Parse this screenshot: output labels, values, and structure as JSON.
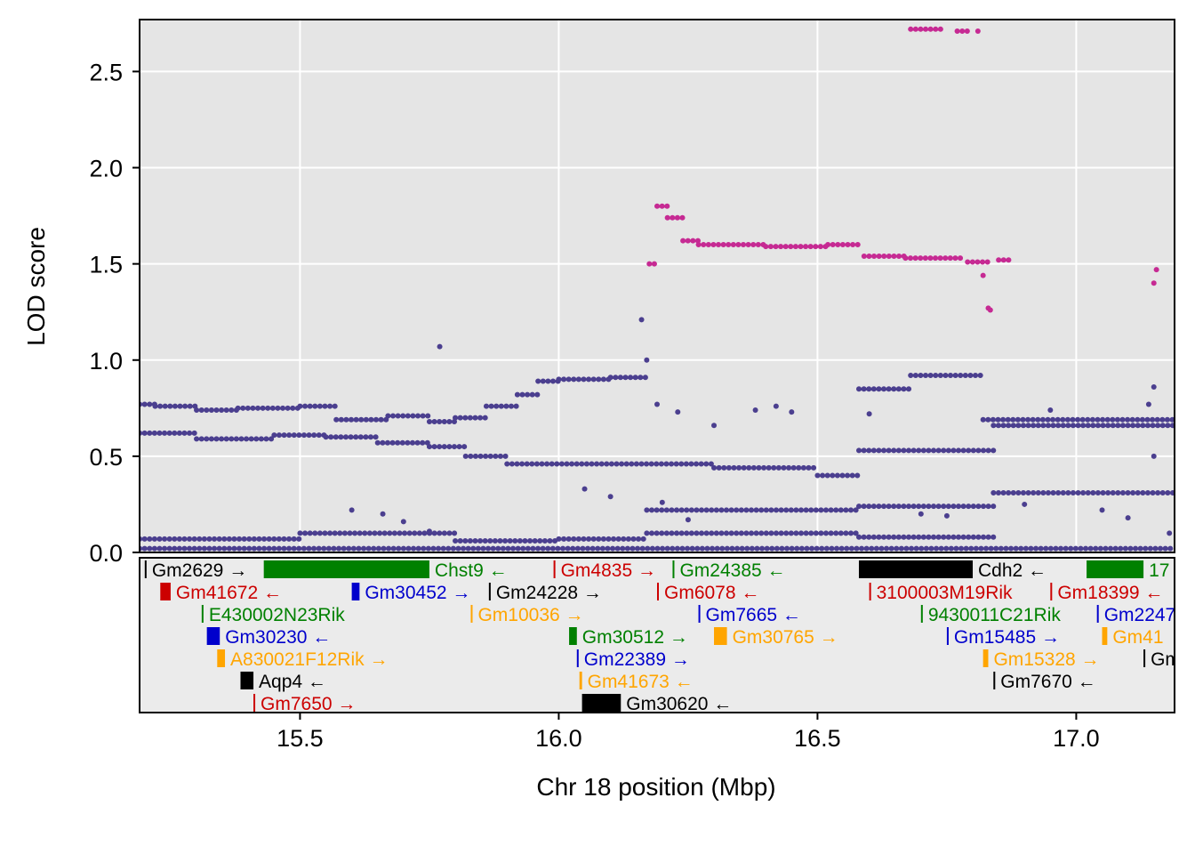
{
  "chart_data": [
    {
      "type": "scatter",
      "xlabel": "",
      "ylabel": "LOD score",
      "xlim": [
        15.19,
        17.19
      ],
      "ylim": [
        0,
        2.77
      ],
      "y_ticks": [
        "0.0",
        "0.5",
        "1.0",
        "1.5",
        "2.0",
        "2.5"
      ],
      "y_tick_values": [
        0,
        0.5,
        1.0,
        1.5,
        2.0,
        2.5
      ],
      "x_gridlines": [
        15.5,
        16.0,
        16.5,
        17.0
      ],
      "grid": true,
      "colors": {
        "background": "#e5e5e5",
        "grid": "#ffffff",
        "highlight": "#c62a93",
        "base": "#4b3f8f"
      },
      "series": [
        {
          "color": "#c62a93",
          "segments": [
            {
              "x0": 16.175,
              "x1": 16.19,
              "y": 1.5
            },
            {
              "x0": 16.19,
              "x1": 16.21,
              "y": 1.8
            },
            {
              "x0": 16.21,
              "x1": 16.24,
              "y": 1.74
            },
            {
              "x0": 16.24,
              "x1": 16.27,
              "y": 1.62
            },
            {
              "x0": 16.27,
              "x1": 16.4,
              "y": 1.6
            },
            {
              "x0": 16.4,
              "x1": 16.52,
              "y": 1.59
            },
            {
              "x0": 16.52,
              "x1": 16.58,
              "y": 1.6
            },
            {
              "x0": 16.59,
              "x1": 16.67,
              "y": 1.54
            },
            {
              "x0": 16.67,
              "x1": 16.78,
              "y": 1.53
            },
            {
              "x0": 16.79,
              "x1": 16.83,
              "y": 1.51
            },
            {
              "x0": 16.85,
              "x1": 16.87,
              "y": 1.52
            },
            {
              "x0": 16.68,
              "x1": 16.74,
              "y": 2.72
            },
            {
              "x0": 16.77,
              "x1": 16.79,
              "y": 2.71
            }
          ],
          "points": [
            [
              16.82,
              1.44
            ],
            [
              16.83,
              1.27
            ],
            [
              16.834,
              1.26
            ],
            [
              17.15,
              1.4
            ],
            [
              17.155,
              1.47
            ],
            [
              16.81,
              2.71
            ]
          ]
        },
        {
          "color": "#4b3f8f",
          "segments": [
            {
              "x0": 15.19,
              "x1": 15.22,
              "y": 0.77
            },
            {
              "x0": 15.22,
              "x1": 15.3,
              "y": 0.76
            },
            {
              "x0": 15.3,
              "x1": 15.38,
              "y": 0.74
            },
            {
              "x0": 15.38,
              "x1": 15.5,
              "y": 0.75
            },
            {
              "x0": 15.5,
              "x1": 15.57,
              "y": 0.76
            },
            {
              "x0": 15.57,
              "x1": 15.67,
              "y": 0.69
            },
            {
              "x0": 15.67,
              "x1": 15.75,
              "y": 0.71
            },
            {
              "x0": 15.75,
              "x1": 15.8,
              "y": 0.68
            },
            {
              "x0": 15.8,
              "x1": 15.86,
              "y": 0.7
            },
            {
              "x0": 15.86,
              "x1": 15.92,
              "y": 0.76
            },
            {
              "x0": 15.92,
              "x1": 15.96,
              "y": 0.82
            },
            {
              "x0": 15.96,
              "x1": 16.0,
              "y": 0.89
            },
            {
              "x0": 16.0,
              "x1": 16.1,
              "y": 0.9
            },
            {
              "x0": 16.1,
              "x1": 16.17,
              "y": 0.91
            },
            {
              "x0": 15.19,
              "x1": 15.3,
              "y": 0.62
            },
            {
              "x0": 15.3,
              "x1": 15.45,
              "y": 0.59
            },
            {
              "x0": 15.45,
              "x1": 15.55,
              "y": 0.61
            },
            {
              "x0": 15.55,
              "x1": 15.65,
              "y": 0.6
            },
            {
              "x0": 15.65,
              "x1": 15.75,
              "y": 0.57
            },
            {
              "x0": 15.75,
              "x1": 15.82,
              "y": 0.55
            },
            {
              "x0": 15.82,
              "x1": 15.9,
              "y": 0.5
            },
            {
              "x0": 15.9,
              "x1": 16.3,
              "y": 0.46
            },
            {
              "x0": 16.3,
              "x1": 16.5,
              "y": 0.44
            },
            {
              "x0": 16.5,
              "x1": 16.58,
              "y": 0.4
            },
            {
              "x0": 16.58,
              "x1": 16.84,
              "y": 0.53
            },
            {
              "x0": 16.58,
              "x1": 16.68,
              "y": 0.85
            },
            {
              "x0": 16.68,
              "x1": 16.82,
              "y": 0.92
            },
            {
              "x0": 16.82,
              "x1": 17.19,
              "y": 0.69
            },
            {
              "x0": 16.84,
              "x1": 17.19,
              "y": 0.66
            },
            {
              "x0": 16.84,
              "x1": 17.19,
              "y": 0.31
            },
            {
              "x0": 15.19,
              "x1": 15.5,
              "y": 0.07
            },
            {
              "x0": 15.5,
              "x1": 15.8,
              "y": 0.1
            },
            {
              "x0": 15.8,
              "x1": 16.0,
              "y": 0.06
            },
            {
              "x0": 16.0,
              "x1": 16.17,
              "y": 0.07
            },
            {
              "x0": 16.17,
              "x1": 16.58,
              "y": 0.22
            },
            {
              "x0": 16.58,
              "x1": 16.84,
              "y": 0.24
            },
            {
              "x0": 16.17,
              "x1": 16.58,
              "y": 0.1
            },
            {
              "x0": 16.58,
              "x1": 16.84,
              "y": 0.08
            },
            {
              "x0": 15.19,
              "x1": 17.19,
              "y": 0.02
            }
          ],
          "points": [
            [
              15.77,
              1.07
            ],
            [
              16.17,
              1.0
            ],
            [
              16.16,
              1.21
            ],
            [
              16.19,
              0.77
            ],
            [
              16.23,
              0.73
            ],
            [
              16.3,
              0.66
            ],
            [
              16.38,
              0.74
            ],
            [
              16.42,
              0.76
            ],
            [
              16.45,
              0.73
            ],
            [
              16.6,
              0.72
            ],
            [
              16.95,
              0.74
            ],
            [
              17.15,
              0.86
            ],
            [
              17.14,
              0.77
            ],
            [
              15.6,
              0.22
            ],
            [
              15.66,
              0.2
            ],
            [
              15.7,
              0.16
            ],
            [
              15.75,
              0.11
            ],
            [
              16.05,
              0.33
            ],
            [
              16.1,
              0.29
            ],
            [
              16.2,
              0.26
            ],
            [
              16.25,
              0.17
            ],
            [
              16.7,
              0.2
            ],
            [
              16.75,
              0.19
            ],
            [
              16.9,
              0.25
            ],
            [
              17.05,
              0.22
            ],
            [
              17.1,
              0.18
            ],
            [
              17.15,
              0.5
            ],
            [
              17.18,
              0.1
            ]
          ]
        }
      ]
    }
  ],
  "y_axis_title": "LOD score",
  "x_axis_title": "Chr 18 position (Mbp)",
  "x_ticks": [
    "15.5",
    "16.0",
    "16.5",
    "17.0"
  ],
  "genes": [
    {
      "name": "Gm2629",
      "arrow": "→",
      "row": 0,
      "start": 15.2,
      "end": 15.202,
      "color": "#000000"
    },
    {
      "name": "Chst9",
      "arrow": "←",
      "row": 0,
      "start": 15.43,
      "end": 15.75,
      "color": "#008000"
    },
    {
      "name": "Gm4835",
      "arrow": "→",
      "row": 0,
      "start": 15.99,
      "end": 15.992,
      "color": "#cc0000"
    },
    {
      "name": "Gm24385",
      "arrow": "←",
      "row": 0,
      "start": 16.22,
      "end": 16.222,
      "color": "#008000"
    },
    {
      "name": "Cdh2",
      "arrow": "←",
      "row": 0,
      "start": 16.58,
      "end": 16.8,
      "color": "#000000"
    },
    {
      "name": "17",
      "arrow": "",
      "row": 0,
      "start": 17.02,
      "end": 17.13,
      "color": "#008000"
    },
    {
      "name": "Gm41672",
      "arrow": "←",
      "row": 1,
      "start": 15.23,
      "end": 15.25,
      "color": "#cc0000"
    },
    {
      "name": "Gm30452",
      "arrow": "→",
      "row": 1,
      "start": 15.6,
      "end": 15.615,
      "color": "#0000cc"
    },
    {
      "name": "Gm24228",
      "arrow": "→",
      "row": 1,
      "start": 15.865,
      "end": 15.867,
      "color": "#000000"
    },
    {
      "name": "Gm6078",
      "arrow": "←",
      "row": 1,
      "start": 16.19,
      "end": 16.192,
      "color": "#cc0000"
    },
    {
      "name": "3100003M19Rik",
      "arrow": "",
      "row": 1,
      "start": 16.6,
      "end": 16.602,
      "color": "#cc0000"
    },
    {
      "name": "Gm18399",
      "arrow": "←",
      "row": 1,
      "start": 16.95,
      "end": 16.952,
      "color": "#cc0000"
    },
    {
      "name": "E430002N23Rik",
      "arrow": "",
      "row": 2,
      "start": 15.31,
      "end": 15.312,
      "color": "#008000"
    },
    {
      "name": "Gm10036",
      "arrow": "→",
      "row": 2,
      "start": 15.83,
      "end": 15.832,
      "color": "#ffa500"
    },
    {
      "name": "Gm7665",
      "arrow": "←",
      "row": 2,
      "start": 16.27,
      "end": 16.272,
      "color": "#0000cc"
    },
    {
      "name": "9430011C21Rik",
      "arrow": "",
      "row": 2,
      "start": 16.7,
      "end": 16.702,
      "color": "#008000"
    },
    {
      "name": "Gm2247",
      "arrow": "",
      "row": 2,
      "start": 17.04,
      "end": 17.042,
      "color": "#0000cc"
    },
    {
      "name": "Gm30230",
      "arrow": "←",
      "row": 3,
      "start": 15.32,
      "end": 15.345,
      "color": "#0000cc"
    },
    {
      "name": "Gm30512",
      "arrow": "→",
      "row": 3,
      "start": 16.02,
      "end": 16.035,
      "color": "#008000"
    },
    {
      "name": "Gm30765",
      "arrow": "→",
      "row": 3,
      "start": 16.3,
      "end": 16.325,
      "color": "#ffa500"
    },
    {
      "name": "Gm15485",
      "arrow": "→",
      "row": 3,
      "start": 16.75,
      "end": 16.752,
      "color": "#0000cc"
    },
    {
      "name": "Gm41",
      "arrow": "",
      "row": 3,
      "start": 17.05,
      "end": 17.06,
      "color": "#ffa500"
    },
    {
      "name": "A830021F12Rik",
      "arrow": "→",
      "row": 4,
      "start": 15.34,
      "end": 15.355,
      "color": "#ffa500"
    },
    {
      "name": "Gm22389",
      "arrow": "→",
      "row": 4,
      "start": 16.035,
      "end": 16.037,
      "color": "#0000cc"
    },
    {
      "name": "Gm15328",
      "arrow": "→",
      "row": 4,
      "start": 16.82,
      "end": 16.83,
      "color": "#ffa500"
    },
    {
      "name": "Gm",
      "arrow": "",
      "row": 4,
      "start": 17.13,
      "end": 17.132,
      "color": "#000000"
    },
    {
      "name": "Aqp4",
      "arrow": "←",
      "row": 5,
      "start": 15.385,
      "end": 15.41,
      "color": "#000000"
    },
    {
      "name": "Gm41673",
      "arrow": "←",
      "row": 5,
      "start": 16.04,
      "end": 16.045,
      "color": "#ffa500"
    },
    {
      "name": "Gm7670",
      "arrow": "←",
      "row": 5,
      "start": 16.84,
      "end": 16.842,
      "color": "#000000"
    },
    {
      "name": "Gm7650",
      "arrow": "→",
      "row": 6,
      "start": 15.41,
      "end": 15.412,
      "color": "#cc0000"
    },
    {
      "name": "Gm30620",
      "arrow": "←",
      "row": 6,
      "start": 16.045,
      "end": 16.12,
      "color": "#000000"
    }
  ]
}
